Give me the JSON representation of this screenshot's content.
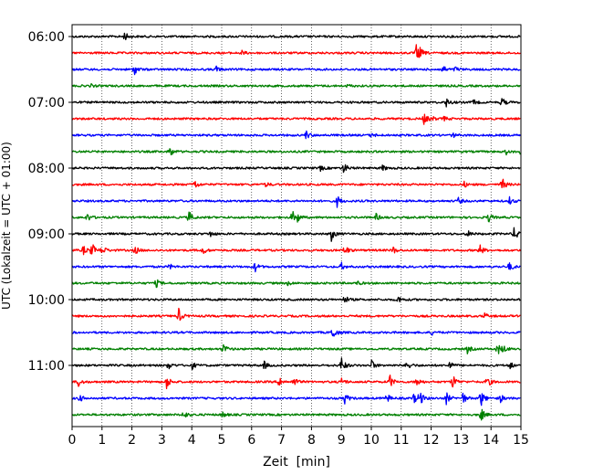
{
  "chart_data": {
    "type": "line",
    "title": "",
    "xlabel": "Zeit  [min]",
    "ylabel": "UTC (Lokalzeit = UTC + 01:00)",
    "xlim": [
      0,
      15
    ],
    "x_ticks": [
      "0",
      "1",
      "2",
      "3",
      "4",
      "5",
      "6",
      "7",
      "8",
      "9",
      "10",
      "11",
      "12",
      "13",
      "14",
      "15"
    ],
    "y_tick_labels": [
      "06:00",
      "07:00",
      "08:00",
      "09:00",
      "10:00",
      "11:00"
    ],
    "trace_colors": [
      "#000000",
      "#ff0000",
      "#0000ff",
      "#008000"
    ],
    "grid": "vertical dotted lines at each minute",
    "legend": "none",
    "series": [
      {
        "time": "06:00",
        "color": "#000000",
        "events": [
          {
            "x": 1.75,
            "amp": 5
          }
        ]
      },
      {
        "time": "06:15",
        "color": "#ff0000",
        "events": [
          {
            "x": 5.65,
            "amp": 3
          },
          {
            "x": 11.5,
            "amp": 9
          },
          {
            "x": 11.6,
            "amp": 5
          }
        ]
      },
      {
        "time": "06:30",
        "color": "#0000ff",
        "events": [
          {
            "x": 2.05,
            "amp": 8
          },
          {
            "x": 4.8,
            "amp": 4
          },
          {
            "x": 12.35,
            "amp": 6
          },
          {
            "x": 12.8,
            "amp": 3
          }
        ]
      },
      {
        "time": "06:45",
        "color": "#008000",
        "events": [
          {
            "x": 0.6,
            "amp": 2
          },
          {
            "x": 9.2,
            "amp": 2
          }
        ]
      },
      {
        "time": "07:00",
        "color": "#000000",
        "events": [
          {
            "x": 12.5,
            "amp": 5
          },
          {
            "x": 13.4,
            "amp": 3
          },
          {
            "x": 14.35,
            "amp": 6
          }
        ]
      },
      {
        "time": "07:15",
        "color": "#ff0000",
        "events": [
          {
            "x": 11.75,
            "amp": 7
          },
          {
            "x": 12.0,
            "amp": 3
          },
          {
            "x": 12.4,
            "amp": 3
          }
        ]
      },
      {
        "time": "07:30",
        "color": "#0000ff",
        "events": [
          {
            "x": 7.8,
            "amp": 6
          },
          {
            "x": 10.0,
            "amp": 3
          },
          {
            "x": 12.7,
            "amp": 3
          }
        ]
      },
      {
        "time": "07:45",
        "color": "#008000",
        "events": [
          {
            "x": 3.25,
            "amp": 7
          },
          {
            "x": 14.5,
            "amp": 3
          },
          {
            "x": 14.95,
            "amp": 7
          }
        ]
      },
      {
        "time": "08:00",
        "color": "#000000",
        "events": [
          {
            "x": 9.05,
            "amp": 8
          },
          {
            "x": 8.3,
            "amp": 3
          },
          {
            "x": 10.35,
            "amp": 4
          }
        ]
      },
      {
        "time": "08:15",
        "color": "#ff0000",
        "events": [
          {
            "x": 4.05,
            "amp": 8
          },
          {
            "x": 6.45,
            "amp": 3
          },
          {
            "x": 13.1,
            "amp": 3
          },
          {
            "x": 14.35,
            "amp": 9
          }
        ]
      },
      {
        "time": "08:30",
        "color": "#0000ff",
        "events": [
          {
            "x": 8.85,
            "amp": 7
          },
          {
            "x": 12.9,
            "amp": 4
          },
          {
            "x": 14.6,
            "amp": 5
          }
        ]
      },
      {
        "time": "08:45",
        "color": "#008000",
        "events": [
          {
            "x": 0.5,
            "amp": 5
          },
          {
            "x": 3.9,
            "amp": 7
          },
          {
            "x": 7.35,
            "amp": 8
          },
          {
            "x": 7.5,
            "amp": 6
          },
          {
            "x": 10.15,
            "amp": 4
          },
          {
            "x": 13.9,
            "amp": 6
          }
        ]
      },
      {
        "time": "09:00",
        "color": "#000000",
        "events": [
          {
            "x": 4.6,
            "amp": 4
          },
          {
            "x": 8.65,
            "amp": 9
          },
          {
            "x": 13.2,
            "amp": 4
          },
          {
            "x": 14.75,
            "amp": 7
          },
          {
            "x": 14.9,
            "amp": 6
          }
        ]
      },
      {
        "time": "09:15",
        "color": "#ff0000",
        "events": [
          {
            "x": 0.35,
            "amp": 6
          },
          {
            "x": 0.65,
            "amp": 9
          },
          {
            "x": 1.0,
            "amp": 6
          },
          {
            "x": 2.1,
            "amp": 5
          },
          {
            "x": 4.35,
            "amp": 5
          },
          {
            "x": 9.1,
            "amp": 7
          },
          {
            "x": 10.7,
            "amp": 5
          },
          {
            "x": 13.6,
            "amp": 8
          }
        ]
      },
      {
        "time": "09:30",
        "color": "#0000ff",
        "events": [
          {
            "x": 3.25,
            "amp": 3
          },
          {
            "x": 6.1,
            "amp": 6
          },
          {
            "x": 9.0,
            "amp": 4
          },
          {
            "x": 14.6,
            "amp": 6
          }
        ]
      },
      {
        "time": "09:45",
        "color": "#008000",
        "events": [
          {
            "x": 2.8,
            "amp": 5
          },
          {
            "x": 7.2,
            "amp": 3
          },
          {
            "x": 9.5,
            "amp": 3
          }
        ]
      },
      {
        "time": "10:00",
        "color": "#000000",
        "events": [
          {
            "x": 9.1,
            "amp": 5
          },
          {
            "x": 10.9,
            "amp": 4
          }
        ]
      },
      {
        "time": "10:15",
        "color": "#ff0000",
        "events": [
          {
            "x": 3.55,
            "amp": 9
          },
          {
            "x": 13.75,
            "amp": 4
          }
        ]
      },
      {
        "time": "10:30",
        "color": "#0000ff",
        "events": [
          {
            "x": 8.7,
            "amp": 9
          },
          {
            "x": 12.0,
            "amp": 3
          }
        ]
      },
      {
        "time": "10:45",
        "color": "#008000",
        "events": [
          {
            "x": 5.05,
            "amp": 6
          },
          {
            "x": 13.2,
            "amp": 5
          },
          {
            "x": 14.2,
            "amp": 8
          },
          {
            "x": 14.4,
            "amp": 4
          }
        ]
      },
      {
        "time": "11:00",
        "color": "#000000",
        "events": [
          {
            "x": 3.2,
            "amp": 5
          },
          {
            "x": 4.0,
            "amp": 4
          },
          {
            "x": 6.4,
            "amp": 5
          },
          {
            "x": 9.0,
            "amp": 10
          },
          {
            "x": 10.0,
            "amp": 6
          },
          {
            "x": 11.2,
            "amp": 6
          },
          {
            "x": 12.6,
            "amp": 5
          },
          {
            "x": 14.6,
            "amp": 5
          }
        ]
      },
      {
        "time": "11:15",
        "color": "#ff0000",
        "events": [
          {
            "x": 0.2,
            "amp": 6
          },
          {
            "x": 3.15,
            "amp": 9
          },
          {
            "x": 6.9,
            "amp": 8
          },
          {
            "x": 7.4,
            "amp": 6
          },
          {
            "x": 9.0,
            "amp": 5
          },
          {
            "x": 10.6,
            "amp": 9
          },
          {
            "x": 11.5,
            "amp": 7
          },
          {
            "x": 12.7,
            "amp": 10
          },
          {
            "x": 13.85,
            "amp": 8
          }
        ]
      },
      {
        "time": "11:30",
        "color": "#0000ff",
        "events": [
          {
            "x": 0.25,
            "amp": 4
          },
          {
            "x": 9.1,
            "amp": 7
          },
          {
            "x": 10.5,
            "amp": 6
          },
          {
            "x": 11.4,
            "amp": 6
          },
          {
            "x": 11.6,
            "amp": 10
          },
          {
            "x": 12.5,
            "amp": 7
          },
          {
            "x": 13.05,
            "amp": 7
          },
          {
            "x": 13.65,
            "amp": 11
          },
          {
            "x": 14.3,
            "amp": 5
          }
        ]
      },
      {
        "time": "11:45",
        "color": "#008000",
        "events": [
          {
            "x": 3.7,
            "amp": 6
          },
          {
            "x": 5.0,
            "amp": 4
          },
          {
            "x": 13.65,
            "amp": 9
          }
        ]
      }
    ]
  }
}
